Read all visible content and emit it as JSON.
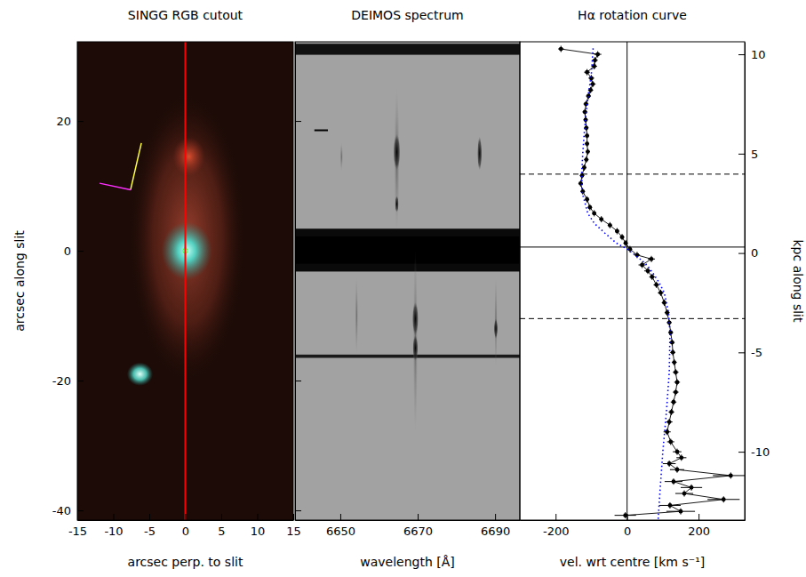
{
  "chart_data": [
    {
      "type": "image",
      "title": "SINGG RGB cutout",
      "x_label": "arcsec perp. to slit",
      "y_label": "arcsec along slit",
      "xlim": [
        -15,
        15
      ],
      "ylim": [
        -41.5,
        32.2
      ],
      "xticks": [
        -15,
        -10,
        -5,
        0,
        5,
        10,
        15
      ],
      "yticks": [
        -40,
        -20,
        0,
        20
      ],
      "vlines": [
        {
          "value": 0,
          "color": "#ff0000",
          "line_style": "solid"
        }
      ]
    },
    {
      "type": "image",
      "title": "DEIMOS spectrum",
      "x_label": "wavelength [Å]",
      "xlim": [
        6638.3,
        6696.4
      ],
      "ylim": [
        -41.5,
        32.2
      ],
      "xticks": [
        6650,
        6670,
        6690
      ],
      "yticks": [
        -40,
        -20,
        0,
        20
      ],
      "tick_labels": "x"
    },
    {
      "type": "line",
      "title": "Hα rotation curve",
      "x_label": "vel. wrt centre [km s⁻¹]",
      "y_label": "kpc along slit",
      "xlim": [
        -300,
        329
      ],
      "ylim": [
        -13.44,
        10.63
      ],
      "xticks": [
        -200,
        0,
        200
      ],
      "yticks": [
        -10,
        -5,
        0,
        5,
        10
      ],
      "hlines": [
        {
          "value": 3.97,
          "line_style": "dashed"
        },
        {
          "value": -3.3,
          "line_style": "dashed"
        },
        {
          "value": 0.3,
          "line_style": "solid"
        }
      ],
      "vlines": [
        {
          "value": 0,
          "color": "#000000",
          "line_style": "solid"
        }
      ],
      "series": [
        {
          "color": "#000000",
          "marker": "circle",
          "line_style": "solid",
          "x": [
            -185,
            -82,
            -90,
            -92,
            -112,
            -100,
            -96,
            -102,
            -108,
            -115,
            -118,
            -116,
            -114,
            -112,
            -112,
            -110,
            -114,
            -120,
            -126,
            -130,
            -124,
            -112,
            -104,
            -92,
            -72,
            -48,
            -28,
            -14,
            -4,
            8,
            28,
            68,
            42,
            58,
            70,
            82,
            94,
            104,
            112,
            118,
            122,
            126,
            128,
            132,
            136,
            140,
            136,
            130,
            124,
            118,
            112,
            122,
            140,
            152,
            118,
            140,
            290,
            130,
            180,
            160,
            270,
            120,
            150,
            -5
          ],
          "values": [
            10.27,
            10.0,
            9.7,
            9.4,
            9.1,
            8.8,
            8.5,
            8.2,
            7.9,
            7.5,
            7.1,
            6.7,
            6.3,
            5.9,
            5.5,
            5.1,
            4.7,
            4.3,
            3.9,
            3.5,
            3.1,
            2.7,
            2.3,
            2.0,
            1.7,
            1.4,
            1.1,
            0.8,
            0.5,
            0.2,
            -0.1,
            -0.3,
            -0.6,
            -0.9,
            -1.2,
            -1.6,
            -2.0,
            -2.5,
            -3.0,
            -3.5,
            -4.0,
            -4.5,
            -5.0,
            -5.5,
            -6.0,
            -6.5,
            -7.0,
            -7.5,
            -8.0,
            -8.5,
            -9.0,
            -9.5,
            -10.0,
            -10.3,
            -10.6,
            -10.9,
            -11.2,
            -11.5,
            -11.8,
            -12.1,
            -12.4,
            -12.7,
            -13.0,
            -13.2
          ],
          "errors": [
            8,
            10,
            8,
            8,
            8,
            8,
            8,
            7,
            7,
            7,
            7,
            6,
            6,
            6,
            6,
            6,
            6,
            6,
            6,
            6,
            6,
            6,
            6,
            6,
            6,
            6,
            6,
            6,
            6,
            6,
            8,
            10,
            10,
            10,
            8,
            8,
            8,
            7,
            7,
            7,
            7,
            7,
            7,
            7,
            8,
            8,
            8,
            8,
            8,
            9,
            10,
            10,
            12,
            14,
            18,
            20,
            50,
            25,
            30,
            25,
            45,
            30,
            40,
            30
          ]
        },
        {
          "color": "#0000ff",
          "line_style": "dotted",
          "x": [
            -95,
            -100,
            -108,
            -115,
            -120,
            -124,
            -127,
            -125,
            -110,
            -92,
            -62,
            -30,
            0,
            30,
            55,
            72,
            90,
            104,
            116,
            120,
            118,
            110,
            100,
            92,
            87
          ],
          "values": [
            10.3,
            9,
            8,
            7,
            6,
            5,
            4,
            3,
            2,
            1.5,
            1,
            0.5,
            0.2,
            -0.2,
            -0.6,
            -1,
            -1.5,
            -2,
            -3,
            -4,
            -6,
            -8,
            -10,
            -12,
            -13.4
          ]
        }
      ]
    }
  ]
}
